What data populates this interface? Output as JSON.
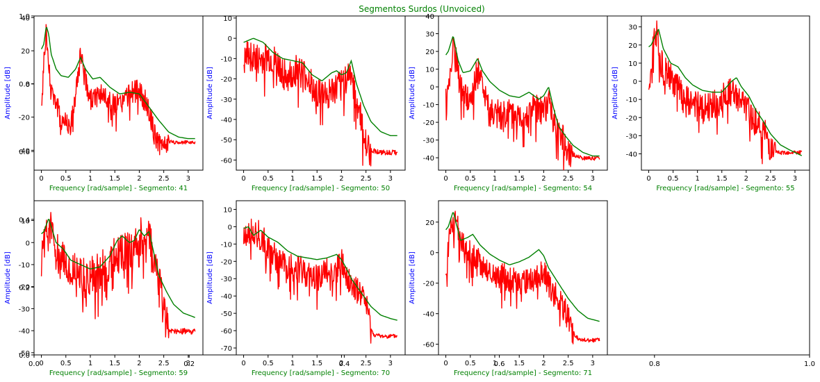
{
  "figure": {
    "title": "Segmentos Surdos (Unvoiced)",
    "title_color": "#008000",
    "background_axes": {
      "x_ticks": [
        "0.0",
        "0.2",
        "0.4",
        "0.6",
        "0.8",
        "1.0"
      ],
      "y_ticks": [
        "0.0",
        "0.2",
        "0.4",
        "0.6",
        "0.8",
        "1.0"
      ]
    }
  },
  "colors": {
    "spectrum": "#ff0000",
    "envelope": "#008000",
    "ylabel": "#0000ff",
    "xlabel": "#008000"
  },
  "chart_data": [
    {
      "type": "line",
      "xlabel": "Frequency [rad/sample] - Segmento: 41",
      "ylabel": "Amplitude [dB]",
      "xlim": [
        -0.15,
        3.3
      ],
      "ylim": [
        -52,
        41
      ],
      "x_ticks": [
        0.0,
        0.5,
        1.0,
        1.5,
        2.0,
        2.5,
        3.0
      ],
      "y_ticks": [
        -40,
        -20,
        0,
        20,
        40
      ],
      "series": [
        {
          "role": "spectrum",
          "noise": 7,
          "seed": 41,
          "x": [
            0,
            0.05,
            0.1,
            0.15,
            0.25,
            0.4,
            0.6,
            0.75,
            0.8,
            0.9,
            1.0,
            1.2,
            1.4,
            1.6,
            1.8,
            2.0,
            2.2,
            2.3,
            2.4,
            2.5,
            2.7,
            3.14
          ],
          "y": [
            -18,
            15,
            33,
            10,
            -6,
            -20,
            -24,
            5,
            20,
            3,
            -9,
            -4,
            -10,
            -12,
            -5,
            -2,
            -14,
            -28,
            -36,
            -34,
            -35,
            -35
          ]
        },
        {
          "role": "envelope",
          "x": [
            0,
            0.05,
            0.1,
            0.15,
            0.2,
            0.3,
            0.4,
            0.55,
            0.7,
            0.8,
            0.9,
            1.05,
            1.2,
            1.4,
            1.6,
            1.8,
            2.0,
            2.2,
            2.4,
            2.6,
            2.8,
            3.0,
            3.14
          ],
          "y": [
            21,
            24,
            35,
            30,
            18,
            9,
            5,
            4,
            9,
            16,
            9,
            3,
            4,
            -2,
            -6,
            -5,
            -6,
            -14,
            -22,
            -29,
            -32,
            -33,
            -33
          ]
        }
      ]
    },
    {
      "type": "line",
      "xlabel": "Frequency [rad/sample] - Segmento: 50",
      "ylabel": "Amplitude [dB]",
      "xlim": [
        -0.15,
        3.3
      ],
      "ylim": [
        -65,
        11
      ],
      "x_ticks": [
        0.0,
        0.5,
        1.0,
        1.5,
        2.0,
        2.5,
        3.0
      ],
      "y_ticks": [
        -60,
        -50,
        -40,
        -30,
        -20,
        -10,
        0,
        10
      ],
      "series": [
        {
          "role": "spectrum",
          "noise": 8,
          "seed": 50,
          "x": [
            0,
            0.1,
            0.3,
            0.5,
            0.7,
            0.9,
            1.1,
            1.3,
            1.5,
            1.7,
            1.9,
            2.1,
            2.2,
            2.3,
            2.4,
            2.5,
            2.6,
            2.8,
            3.14
          ],
          "y": [
            -12,
            -6,
            -10,
            -8,
            -12,
            -18,
            -14,
            -18,
            -25,
            -26,
            -24,
            -18,
            -15,
            -28,
            -38,
            -52,
            -55,
            -56,
            -56
          ]
        },
        {
          "role": "envelope",
          "x": [
            0,
            0.2,
            0.4,
            0.6,
            0.8,
            1.0,
            1.2,
            1.4,
            1.6,
            1.8,
            1.9,
            2.0,
            2.1,
            2.2,
            2.3,
            2.45,
            2.6,
            2.8,
            3.0,
            3.14
          ],
          "y": [
            -2,
            0,
            -2,
            -7,
            -10,
            -11,
            -12,
            -18,
            -21,
            -17,
            -16,
            -18,
            -17,
            -11,
            -22,
            -33,
            -41,
            -46,
            -48,
            -48
          ]
        }
      ]
    },
    {
      "type": "line",
      "xlabel": "Frequency [rad/sample] - Segmento: 54",
      "ylabel": "Amplitude [dB]",
      "xlim": [
        -0.15,
        3.3
      ],
      "ylim": [
        -47,
        40
      ],
      "x_ticks": [
        0.0,
        0.5,
        1.0,
        1.5,
        2.0,
        2.5,
        3.0
      ],
      "y_ticks": [
        -40,
        -30,
        -20,
        -10,
        0,
        10,
        20,
        30,
        40
      ],
      "series": [
        {
          "role": "spectrum",
          "noise": 8,
          "seed": 54,
          "x": [
            0,
            0.1,
            0.15,
            0.3,
            0.5,
            0.65,
            0.8,
            1.0,
            1.2,
            1.4,
            1.6,
            1.8,
            2.0,
            2.1,
            2.2,
            2.4,
            2.5,
            2.6,
            2.8,
            3.14
          ],
          "y": [
            -5,
            12,
            26,
            0,
            -8,
            12,
            -5,
            -14,
            -12,
            -15,
            -16,
            -10,
            -12,
            -5,
            -18,
            -28,
            -35,
            -38,
            -40,
            -40
          ]
        },
        {
          "role": "envelope",
          "x": [
            0,
            0.05,
            0.15,
            0.25,
            0.35,
            0.5,
            0.65,
            0.75,
            0.9,
            1.1,
            1.3,
            1.5,
            1.7,
            1.8,
            1.9,
            2.0,
            2.1,
            2.2,
            2.3,
            2.45,
            2.6,
            2.8,
            3.0,
            3.14
          ],
          "y": [
            18,
            20,
            29,
            15,
            8,
            9,
            16,
            9,
            3,
            -2,
            -5,
            -6,
            -3,
            -5,
            -7,
            -5,
            0,
            -12,
            -22,
            -28,
            -33,
            -37,
            -39,
            -39
          ]
        }
      ]
    },
    {
      "type": "line",
      "xlabel": "Frequency [rad/sample] - Segmento: 55",
      "ylabel": "Amplitude [dB]",
      "xlim": [
        -0.15,
        3.3
      ],
      "ylim": [
        -49,
        36
      ],
      "x_ticks": [
        0.0,
        0.5,
        1.0,
        1.5,
        2.0,
        2.5,
        3.0
      ],
      "y_ticks": [
        -40,
        -30,
        -20,
        -10,
        0,
        10,
        20,
        30
      ],
      "series": [
        {
          "role": "spectrum",
          "noise": 8,
          "seed": 55,
          "x": [
            0,
            0.1,
            0.15,
            0.25,
            0.4,
            0.6,
            0.7,
            0.9,
            1.1,
            1.3,
            1.5,
            1.7,
            1.9,
            2.0,
            2.2,
            2.4,
            2.5,
            2.6,
            2.8,
            3.14
          ],
          "y": [
            -6,
            25,
            30,
            12,
            5,
            -2,
            -8,
            -10,
            -14,
            -12,
            -8,
            -4,
            -10,
            -14,
            -20,
            -28,
            -36,
            -39,
            -39,
            -39
          ]
        },
        {
          "role": "envelope",
          "x": [
            0,
            0.05,
            0.12,
            0.2,
            0.3,
            0.45,
            0.6,
            0.75,
            0.9,
            1.1,
            1.3,
            1.5,
            1.7,
            1.8,
            1.9,
            2.05,
            2.2,
            2.35,
            2.5,
            2.7,
            2.9,
            3.14
          ],
          "y": [
            19,
            20,
            24,
            29,
            18,
            10,
            8,
            2,
            -2,
            -5,
            -6,
            -6,
            0,
            2,
            -3,
            -8,
            -16,
            -22,
            -29,
            -35,
            -38,
            -41
          ]
        }
      ]
    },
    {
      "type": "line",
      "xlabel": "Frequency [rad/sample] - Segmento: 59",
      "ylabel": "Amplitude [dB]",
      "xlim": [
        -0.15,
        3.3
      ],
      "ylim": [
        -51,
        19
      ],
      "x_ticks": [
        0.0,
        0.5,
        1.0,
        1.5,
        2.0,
        2.5,
        3.0
      ],
      "y_ticks": [
        -50,
        -40,
        -30,
        -20,
        -10,
        0,
        10
      ],
      "series": [
        {
          "role": "spectrum",
          "noise": 9,
          "seed": 59,
          "x": [
            0,
            0.1,
            0.15,
            0.3,
            0.5,
            0.7,
            0.9,
            1.1,
            1.3,
            1.5,
            1.7,
            1.9,
            2.0,
            2.1,
            2.2,
            2.3,
            2.45,
            2.5,
            2.6,
            2.8,
            3.14
          ],
          "y": [
            -5,
            8,
            12,
            -2,
            -8,
            -10,
            -15,
            -12,
            -10,
            -4,
            -2,
            -1,
            4,
            5,
            3,
            -6,
            -18,
            -30,
            -40,
            -40,
            -40
          ]
        },
        {
          "role": "envelope",
          "x": [
            0,
            0.05,
            0.15,
            0.3,
            0.45,
            0.6,
            0.8,
            1.0,
            1.2,
            1.4,
            1.55,
            1.65,
            1.8,
            1.9,
            2.0,
            2.1,
            2.2,
            2.3,
            2.4,
            2.55,
            2.7,
            2.9,
            3.14
          ],
          "y": [
            4,
            5,
            11,
            0,
            -3,
            -8,
            -10,
            -12,
            -11,
            -6,
            1,
            3,
            0,
            1,
            6,
            3,
            5,
            -5,
            -15,
            -22,
            -28,
            -32,
            -34
          ]
        }
      ]
    },
    {
      "type": "line",
      "xlabel": "Frequency [rad/sample] - Segmento: 70",
      "ylabel": "Amplitude [dB]",
      "xlim": [
        -0.15,
        3.3
      ],
      "ylim": [
        -74,
        15
      ],
      "x_ticks": [
        0.0,
        0.5,
        1.0,
        1.5,
        2.0,
        2.5,
        3.0
      ],
      "y_ticks": [
        -70,
        -60,
        -50,
        -40,
        -30,
        -20,
        -10,
        0,
        10
      ],
      "series": [
        {
          "role": "spectrum",
          "noise": 8,
          "seed": 70,
          "x": [
            0,
            0.1,
            0.3,
            0.5,
            0.7,
            0.9,
            1.1,
            1.3,
            1.5,
            1.7,
            1.9,
            2.0,
            2.1,
            2.3,
            2.5,
            2.6,
            2.65,
            2.8,
            3.14
          ],
          "y": [
            -4,
            0,
            -2,
            -10,
            -18,
            -22,
            -22,
            -26,
            -28,
            -24,
            -24,
            -18,
            -28,
            -34,
            -42,
            -58,
            -62,
            -63,
            -63
          ]
        },
        {
          "role": "envelope",
          "x": [
            0,
            0.1,
            0.2,
            0.35,
            0.5,
            0.7,
            0.9,
            1.1,
            1.3,
            1.5,
            1.7,
            1.9,
            2.0,
            2.1,
            2.2,
            2.4,
            2.6,
            2.8,
            3.0,
            3.14
          ],
          "y": [
            -1,
            0,
            -5,
            -2,
            -6,
            -9,
            -14,
            -17,
            -18,
            -19,
            -18,
            -16,
            -19,
            -24,
            -30,
            -38,
            -46,
            -51,
            -53,
            -54
          ]
        }
      ]
    },
    {
      "type": "line",
      "xlabel": "Frequency [rad/sample] - Segmento: 71",
      "ylabel": "Amplitude [dB]",
      "xlim": [
        -0.15,
        3.3
      ],
      "ylim": [
        -67,
        34
      ],
      "x_ticks": [
        0.0,
        0.5,
        1.0,
        1.5,
        2.0,
        2.5,
        3.0
      ],
      "y_ticks": [
        -60,
        -40,
        -20,
        0,
        20
      ],
      "series": [
        {
          "role": "spectrum",
          "noise": 9,
          "seed": 71,
          "x": [
            0,
            0.1,
            0.2,
            0.4,
            0.6,
            0.8,
            1.0,
            1.2,
            1.4,
            1.6,
            1.8,
            2.0,
            2.2,
            2.4,
            2.5,
            2.6,
            2.7,
            2.9,
            3.14
          ],
          "y": [
            -5,
            15,
            22,
            2,
            0,
            -8,
            -12,
            -14,
            -16,
            -18,
            -14,
            -12,
            -24,
            -34,
            -40,
            -52,
            -56,
            -57,
            -57
          ]
        },
        {
          "role": "envelope",
          "x": [
            0,
            0.05,
            0.15,
            0.3,
            0.45,
            0.55,
            0.7,
            0.9,
            1.1,
            1.3,
            1.5,
            1.7,
            1.9,
            2.0,
            2.1,
            2.3,
            2.5,
            2.7,
            2.9,
            3.14
          ],
          "y": [
            15,
            17,
            27,
            8,
            10,
            12,
            5,
            -1,
            -5,
            -8,
            -6,
            -3,
            2,
            -2,
            -10,
            -20,
            -30,
            -38,
            -43,
            -45
          ]
        }
      ]
    }
  ]
}
